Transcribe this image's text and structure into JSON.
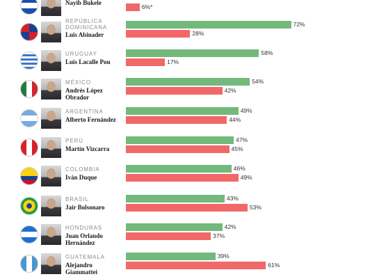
{
  "chart_data": {
    "type": "bar",
    "orientation": "horizontal",
    "title": "",
    "xlabel": "",
    "ylabel": "",
    "xlim": [
      0,
      100
    ],
    "colors": {
      "approve": "#72b97b",
      "disapprove": "#f26868"
    },
    "leaders": [
      {
        "country": "",
        "name": "Nayib Bukele",
        "approve": null,
        "disapprove": 6,
        "disapprove_label": "6%*",
        "flag": "el-salvador"
      },
      {
        "country": "REPÚBLICA DOMINICANA",
        "name": "Luis Abinader",
        "approve": 72,
        "disapprove": 28,
        "flag": "dominican-republic"
      },
      {
        "country": "URUGUAY",
        "name": "Luis Lacalle Pou",
        "approve": 58,
        "disapprove": 17,
        "flag": "uruguay"
      },
      {
        "country": "MÉXICO",
        "name": "Andrés López Obrador",
        "approve": 54,
        "disapprove": 42,
        "flag": "mexico"
      },
      {
        "country": "ARGENTINA",
        "name": "Alberto Fernández",
        "approve": 49,
        "disapprove": 44,
        "flag": "argentina"
      },
      {
        "country": "PERÚ",
        "name": "Martín Vizcarra",
        "approve": 47,
        "disapprove": 45,
        "flag": "peru"
      },
      {
        "country": "COLOMBIA",
        "name": "Iván Duque",
        "approve": 46,
        "disapprove": 49,
        "flag": "colombia"
      },
      {
        "country": "BRASIL",
        "name": "Jair Bolsonaro",
        "approve": 43,
        "disapprove": 53,
        "flag": "brazil"
      },
      {
        "country": "HONDURAS",
        "name": "Juan Orlando Hernández",
        "approve": 42,
        "disapprove": 37,
        "flag": "honduras"
      },
      {
        "country": "GUATEMALA",
        "name": "Alejandro Giammattei",
        "approve": 39,
        "disapprove": 61,
        "flag": "guatemala"
      }
    ]
  }
}
